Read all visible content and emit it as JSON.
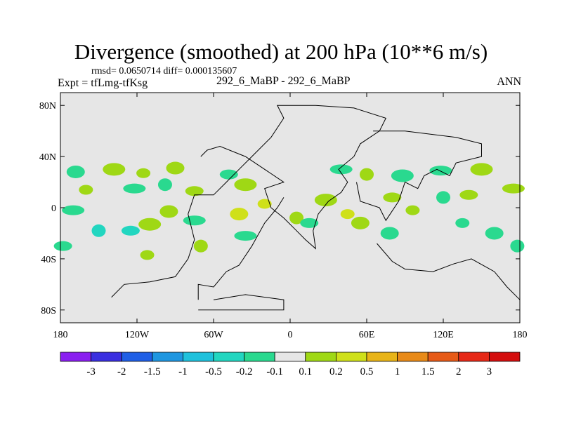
{
  "chart_data": {
    "type": "heatmap",
    "title": "Divergence (smoothed) at 200 hPa (10**6 m/s)",
    "stats_text": "rmsd= 0.0650714 diff= 0.000135607",
    "left_label": "Expt = tfLmg-tfKsg",
    "center_label": "292_6_MaBP - 292_6_MaBP",
    "right_label": "ANN",
    "x_axis": {
      "range": [
        -180,
        180
      ],
      "ticks": [
        -180,
        -120,
        -60,
        0,
        60,
        120,
        180
      ],
      "tick_labels": [
        "180",
        "120W",
        "60W",
        "0",
        "60E",
        "120E",
        "180"
      ]
    },
    "y_axis": {
      "range": [
        -90,
        90
      ],
      "ticks": [
        80,
        40,
        0,
        -40,
        -80
      ],
      "tick_labels": [
        "80N",
        "40N",
        "0",
        "40S",
        "80S"
      ]
    },
    "levels": [
      "-3",
      "-2",
      "-1.5",
      "-1",
      "-0.5",
      "-0.2",
      "-0.1",
      "0.1",
      "0.2",
      "0.5",
      "1",
      "1.5",
      "2",
      "3"
    ],
    "level_colors": [
      "#8a1ff0",
      "#3a2fe0",
      "#1f5fe6",
      "#1e96e0",
      "#1ec1dc",
      "#22d6c0",
      "#2ad98f",
      "#e6e6e6",
      "#9fd815",
      "#cfe01a",
      "#e8b418",
      "#e88a18",
      "#e65a17",
      "#e62817",
      "#d40e0e"
    ],
    "background_color": "#e6e6e6",
    "anomaly_blobs": [
      {
        "lon": -160,
        "lat": 14,
        "value": 0.15
      },
      {
        "lon": -168,
        "lat": 28,
        "value": -0.15
      },
      {
        "lon": -170,
        "lat": -2,
        "value": -0.15
      },
      {
        "lon": -150,
        "lat": -18,
        "value": -0.3
      },
      {
        "lon": -125,
        "lat": -18,
        "value": -0.3
      },
      {
        "lon": -138,
        "lat": 30,
        "value": 0.15
      },
      {
        "lon": -115,
        "lat": 27,
        "value": 0.15
      },
      {
        "lon": -90,
        "lat": 31,
        "value": 0.15
      },
      {
        "lon": -122,
        "lat": 15,
        "value": -0.15
      },
      {
        "lon": -98,
        "lat": 18,
        "value": -0.15
      },
      {
        "lon": -75,
        "lat": 13,
        "value": 0.15
      },
      {
        "lon": -110,
        "lat": -13,
        "value": 0.15
      },
      {
        "lon": -112,
        "lat": -37,
        "value": 0.15
      },
      {
        "lon": -95,
        "lat": -3,
        "value": 0.15
      },
      {
        "lon": -75,
        "lat": -10,
        "value": -0.15
      },
      {
        "lon": -70,
        "lat": -30,
        "value": 0.15
      },
      {
        "lon": -48,
        "lat": 26,
        "value": -0.15
      },
      {
        "lon": -35,
        "lat": 18,
        "value": 0.15
      },
      {
        "lon": -20,
        "lat": 3,
        "value": 0.3
      },
      {
        "lon": -40,
        "lat": -5,
        "value": 0.2
      },
      {
        "lon": -35,
        "lat": -22,
        "value": -0.15
      },
      {
        "lon": 5,
        "lat": -8,
        "value": 0.15
      },
      {
        "lon": 15,
        "lat": -12,
        "value": -0.15
      },
      {
        "lon": 28,
        "lat": 6,
        "value": 0.15
      },
      {
        "lon": 45,
        "lat": -5,
        "value": 0.3
      },
      {
        "lon": 55,
        "lat": -12,
        "value": 0.15
      },
      {
        "lon": 40,
        "lat": 30,
        "value": -0.15
      },
      {
        "lon": 60,
        "lat": 26,
        "value": 0.15
      },
      {
        "lon": 80,
        "lat": 8,
        "value": 0.15
      },
      {
        "lon": 88,
        "lat": 25,
        "value": -0.15
      },
      {
        "lon": 96,
        "lat": -2,
        "value": 0.15
      },
      {
        "lon": 78,
        "lat": -20,
        "value": -0.15
      },
      {
        "lon": 118,
        "lat": 29,
        "value": -0.15
      },
      {
        "lon": 120,
        "lat": 8,
        "value": -0.15
      },
      {
        "lon": 140,
        "lat": 10,
        "value": 0.15
      },
      {
        "lon": 150,
        "lat": 30,
        "value": 0.15
      },
      {
        "lon": 135,
        "lat": -12,
        "value": -0.15
      },
      {
        "lon": 160,
        "lat": -20,
        "value": -0.15
      },
      {
        "lon": 175,
        "lat": 15,
        "value": 0.15
      },
      {
        "lon": 178,
        "lat": -30,
        "value": -0.15
      },
      {
        "lon": -178,
        "lat": -30,
        "value": -0.15
      }
    ],
    "coastlines": [
      [
        [
          -140,
          -70
        ],
        [
          -130,
          -60
        ],
        [
          -110,
          -58
        ],
        [
          -90,
          -54
        ],
        [
          -80,
          -40
        ],
        [
          -75,
          -25
        ],
        [
          -80,
          -5
        ],
        [
          -75,
          10
        ],
        [
          -60,
          10
        ],
        [
          -50,
          20
        ],
        [
          -40,
          30
        ],
        [
          -30,
          40
        ],
        [
          -15,
          55
        ],
        [
          -5,
          70
        ],
        [
          -10,
          80
        ],
        [
          20,
          80
        ],
        [
          50,
          78
        ],
        [
          75,
          70
        ],
        [
          70,
          60
        ],
        [
          55,
          50
        ],
        [
          50,
          40
        ],
        [
          38,
          30
        ],
        [
          45,
          20
        ],
        [
          40,
          12
        ],
        [
          30,
          5
        ],
        [
          22,
          -5
        ],
        [
          18,
          -18
        ],
        [
          20,
          -32
        ],
        [
          12,
          -25
        ],
        [
          5,
          -18
        ],
        [
          -5,
          -8
        ],
        [
          -15,
          0
        ],
        [
          -20,
          15
        ],
        [
          -5,
          20
        ],
        [
          -20,
          30
        ],
        [
          -35,
          40
        ],
        [
          -55,
          48
        ],
        [
          -65,
          45
        ],
        [
          -70,
          40
        ]
      ],
      [
        [
          -72,
          -72
        ],
        [
          -72,
          -60
        ],
        [
          -60,
          -62
        ],
        [
          -50,
          -50
        ],
        [
          -40,
          -45
        ],
        [
          -30,
          -30
        ],
        [
          -20,
          -12
        ],
        [
          -10,
          0
        ],
        [
          -5,
          8
        ]
      ],
      [
        [
          52,
          20
        ],
        [
          55,
          5
        ],
        [
          70,
          0
        ],
        [
          75,
          -10
        ],
        [
          85,
          5
        ],
        [
          90,
          20
        ],
        [
          100,
          15
        ],
        [
          105,
          25
        ],
        [
          115,
          30
        ],
        [
          125,
          25
        ],
        [
          130,
          35
        ],
        [
          150,
          40
        ],
        [
          150,
          50
        ],
        [
          130,
          55
        ],
        [
          90,
          60
        ],
        [
          65,
          60
        ]
      ],
      [
        [
          68,
          -28
        ],
        [
          80,
          -42
        ],
        [
          90,
          -48
        ],
        [
          112,
          -50
        ],
        [
          128,
          -44
        ],
        [
          142,
          -40
        ],
        [
          160,
          -50
        ],
        [
          170,
          -62
        ],
        [
          180,
          -72
        ]
      ],
      [
        [
          -60,
          -72
        ],
        [
          -35,
          -68
        ],
        [
          -5,
          -72
        ],
        [
          -5,
          -80
        ],
        [
          -72,
          -80
        ]
      ]
    ]
  }
}
